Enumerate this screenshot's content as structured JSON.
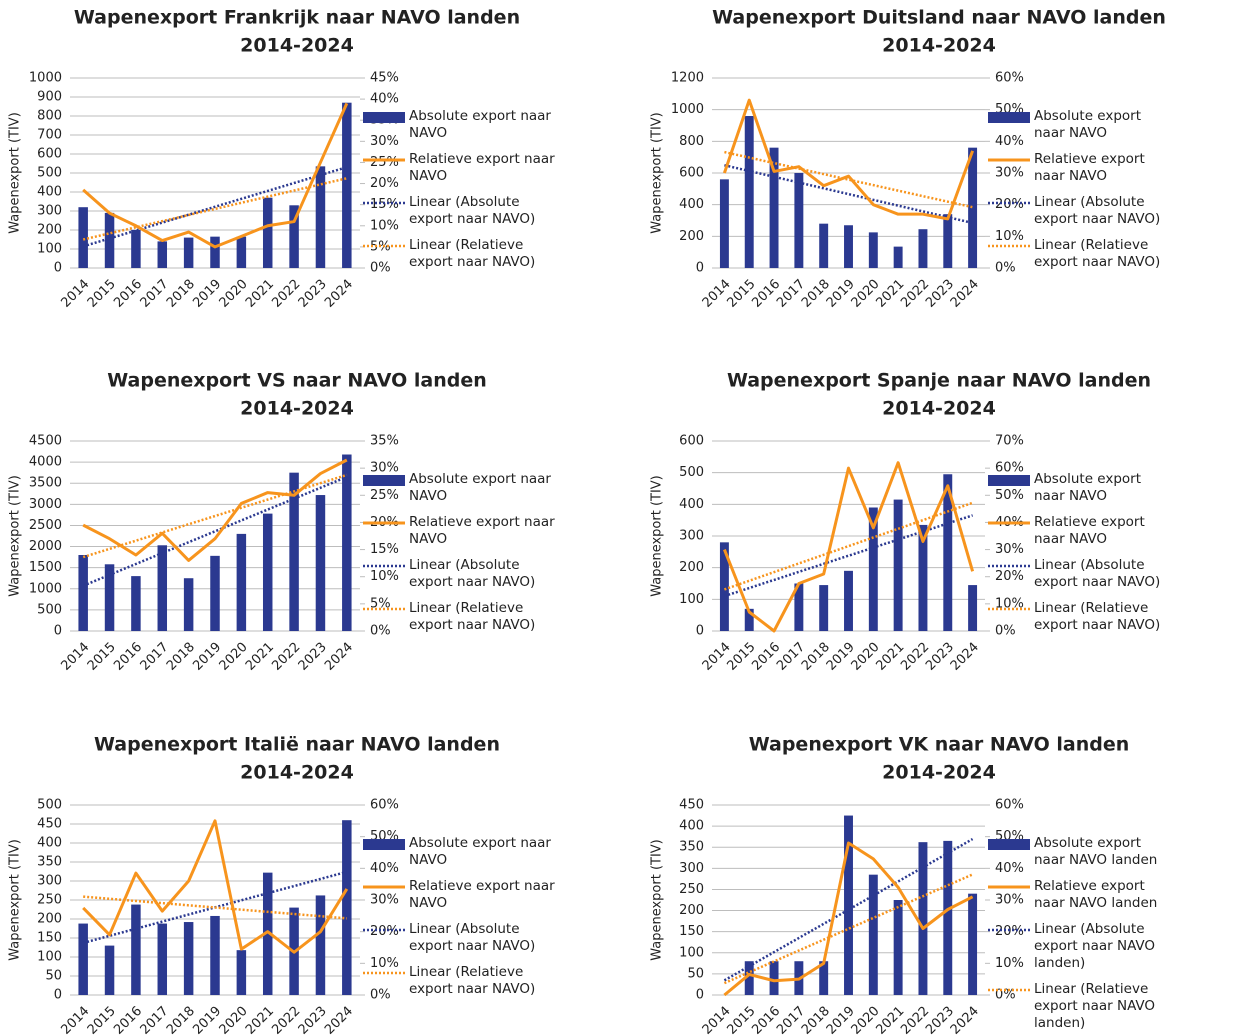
{
  "chart_data": [
    {
      "type": "bar_line",
      "title": "Wapenexport Frankrijk naar NAVO landen",
      "subtitle": "2014-2024",
      "y_label": "Wapenexport (TIV)",
      "categories": [
        "2014",
        "2015",
        "2016",
        "2017",
        "2018",
        "2019",
        "2020",
        "2021",
        "2022",
        "2023",
        "2024"
      ],
      "ylim": [
        0,
        1000
      ],
      "yticks": [
        0,
        100,
        200,
        300,
        400,
        500,
        600,
        700,
        800,
        900,
        1000
      ],
      "y2lim": [
        0,
        45
      ],
      "y2ticks": [
        {
          "value": 0,
          "label": "0%"
        },
        {
          "value": 5,
          "label": "5%"
        },
        {
          "value": 10,
          "label": "10%"
        },
        {
          "value": 15,
          "label": "15%"
        },
        {
          "value": 20,
          "label": "20%"
        },
        {
          "value": 25,
          "label": "25%"
        },
        {
          "value": 30,
          "label": "30%"
        },
        {
          "value": 35,
          "label": "35%"
        },
        {
          "value": 40,
          "label": "40%"
        },
        {
          "value": 45,
          "label": "45%"
        }
      ],
      "grid": true,
      "series": [
        {
          "name": "Absolute export naar NAVO",
          "type": "bar",
          "color": "#2b3990",
          "values": [
            320,
            290,
            200,
            140,
            160,
            165,
            165,
            370,
            330,
            535,
            870
          ],
          "trendline": {
            "name": "Linear (Absolute export naar NAVO)",
            "color": "#2b3990"
          }
        },
        {
          "name": "Relatieve export naar NAVO",
          "type": "line",
          "axis": "y2",
          "color": "#f7941d",
          "values": [
            18.5,
            13,
            10,
            6.5,
            8.5,
            5,
            7.5,
            10,
            11,
            25,
            39
          ],
          "trendline": {
            "name": "Linear (Relatieve export naar NAVO)",
            "color": "#f7941d"
          }
        }
      ]
    },
    {
      "type": "bar_line",
      "title": "Wapenexport Duitsland naar NAVO landen",
      "subtitle": "2014-2024",
      "y_label": "Wapenexport (TIV)",
      "categories": [
        "2014",
        "2015",
        "2016",
        "2017",
        "2018",
        "2019",
        "2020",
        "2021",
        "2022",
        "2023",
        "2024"
      ],
      "ylim": [
        0,
        1200
      ],
      "yticks": [
        0,
        200,
        400,
        600,
        800,
        1000,
        1200
      ],
      "y2lim": [
        0,
        60
      ],
      "y2ticks": [
        {
          "value": 0,
          "label": "0%"
        },
        {
          "value": 10,
          "label": "10%"
        },
        {
          "value": 20,
          "label": "20%"
        },
        {
          "value": 30,
          "label": "30%"
        },
        {
          "value": 40,
          "label": "40%"
        },
        {
          "value": 50,
          "label": "50%"
        },
        {
          "value": 60,
          "label": "60%"
        }
      ],
      "grid": true,
      "series": [
        {
          "name": "Absolute export naar NAVO",
          "type": "bar",
          "color": "#2b3990",
          "values": [
            560,
            960,
            760,
            600,
            280,
            270,
            225,
            135,
            245,
            340,
            760
          ],
          "trendline": {
            "name": "Linear (Absolute export naar NAVO)",
            "color": "#2b3990"
          }
        },
        {
          "name": "Relatieve export naar NAVO",
          "type": "line",
          "axis": "y2",
          "color": "#f7941d",
          "values": [
            30,
            53,
            30.5,
            32,
            26,
            29,
            20,
            17,
            17,
            15.5,
            37
          ],
          "trendline": {
            "name": "Linear (Relatieve export naar NAVO)",
            "color": "#f7941d"
          }
        }
      ]
    },
    {
      "type": "bar_line",
      "title": "Wapenexport VS naar NAVO landen",
      "subtitle": "2014-2024",
      "y_label": "Wapenexport (TIV)",
      "categories": [
        "2014",
        "2015",
        "2016",
        "2017",
        "2018",
        "2019",
        "2020",
        "2021",
        "2022",
        "2023",
        "2024"
      ],
      "ylim": [
        0,
        4500
      ],
      "yticks": [
        0,
        500,
        1000,
        1500,
        2000,
        2500,
        3000,
        3500,
        4000,
        4500
      ],
      "y2lim": [
        0,
        35
      ],
      "y2ticks": [
        {
          "value": 0,
          "label": "0%"
        },
        {
          "value": 5,
          "label": "5%"
        },
        {
          "value": 10,
          "label": "10%"
        },
        {
          "value": 15,
          "label": "15%"
        },
        {
          "value": 20,
          "label": "20%"
        },
        {
          "value": 25,
          "label": "25%"
        },
        {
          "value": 30,
          "label": "30%"
        },
        {
          "value": 35,
          "label": "35%"
        }
      ],
      "grid": true,
      "series": [
        {
          "name": "Absolute export naar NAVO",
          "type": "bar",
          "color": "#2b3990",
          "values": [
            1800,
            1580,
            1300,
            2030,
            1250,
            1780,
            2300,
            2780,
            3750,
            3220,
            4180
          ],
          "trendline": {
            "name": "Linear (Absolute export naar NAVO)",
            "color": "#2b3990"
          }
        },
        {
          "name": "Relatieve export naar NAVO",
          "type": "line",
          "axis": "y2",
          "color": "#f7941d",
          "values": [
            19.5,
            17,
            14,
            18,
            13,
            17,
            23.5,
            25.5,
            25,
            29,
            31.5
          ],
          "trendline": {
            "name": "Linear (Relatieve export naar NAVO)",
            "color": "#f7941d"
          }
        }
      ]
    },
    {
      "type": "bar_line",
      "title": "Wapenexport Spanje naar NAVO landen",
      "subtitle": "2014-2024",
      "y_label": "Wapenexport (TIV)",
      "categories": [
        "2014",
        "2015",
        "2016",
        "2017",
        "2018",
        "2019",
        "2020",
        "2021",
        "2022",
        "2023",
        "2024"
      ],
      "ylim": [
        0,
        600
      ],
      "yticks": [
        0,
        100,
        200,
        300,
        400,
        500,
        600
      ],
      "y2lim": [
        0,
        70
      ],
      "y2ticks": [
        {
          "value": 0,
          "label": "0%"
        },
        {
          "value": 10,
          "label": "10%"
        },
        {
          "value": 20,
          "label": "20%"
        },
        {
          "value": 30,
          "label": "30%"
        },
        {
          "value": 40,
          "label": "40%"
        },
        {
          "value": 50,
          "label": "50%"
        },
        {
          "value": 60,
          "label": "60%"
        },
        {
          "value": 70,
          "label": "70%"
        }
      ],
      "grid": true,
      "series": [
        {
          "name": "Absolute export naar NAVO",
          "type": "bar",
          "color": "#2b3990",
          "values": [
            280,
            70,
            0,
            150,
            145,
            190,
            390,
            415,
            335,
            495,
            145
          ],
          "trendline": {
            "name": "Linear (Absolute export naar NAVO)",
            "color": "#2b3990"
          }
        },
        {
          "name": "Relatieve export naar NAVO",
          "type": "line",
          "axis": "y2",
          "color": "#f7941d",
          "values": [
            30,
            7,
            0,
            17.5,
            21,
            60,
            38,
            62,
            33,
            53.5,
            22
          ],
          "trendline": {
            "name": "Linear (Relatieve export naar NAVO)",
            "color": "#f7941d"
          }
        }
      ]
    },
    {
      "type": "bar_line",
      "title": "Wapenexport Italië naar NAVO landen",
      "subtitle": "2014-2024",
      "y_label": "Wapenexport (TIV)",
      "categories": [
        "2014",
        "2015",
        "2016",
        "2017",
        "2018",
        "2019",
        "2020",
        "2021",
        "2022",
        "2023",
        "2024"
      ],
      "ylim": [
        0,
        500
      ],
      "yticks": [
        0,
        50,
        100,
        150,
        200,
        250,
        300,
        350,
        400,
        450,
        500
      ],
      "y2lim": [
        0,
        60
      ],
      "y2ticks": [
        {
          "value": 0,
          "label": "0%"
        },
        {
          "value": 10,
          "label": "10%"
        },
        {
          "value": 20,
          "label": "20%"
        },
        {
          "value": 30,
          "label": "30%"
        },
        {
          "value": 40,
          "label": "40%"
        },
        {
          "value": 50,
          "label": "50%"
        },
        {
          "value": 60,
          "label": "60%"
        }
      ],
      "grid": true,
      "series": [
        {
          "name": "Absolute export naar NAVO",
          "type": "bar",
          "color": "#2b3990",
          "values": [
            188,
            130,
            238,
            188,
            192,
            208,
            118,
            322,
            230,
            262,
            460
          ],
          "trendline": {
            "name": "Linear (Absolute export naar NAVO)",
            "color": "#2b3990"
          }
        },
        {
          "name": "Relatieve export naar NAVO",
          "type": "line",
          "axis": "y2",
          "color": "#f7941d",
          "values": [
            27.5,
            19,
            38.5,
            26.5,
            36,
            55,
            14.5,
            20,
            13.5,
            20,
            33.5
          ],
          "trendline": {
            "name": "Linear (Relatieve export naar NAVO)",
            "color": "#f7941d"
          }
        }
      ]
    },
    {
      "type": "bar_line",
      "title": "Wapenexport VK naar NAVO landen",
      "subtitle": "2014-2024",
      "y_label": "Wapenexport (TIV)",
      "categories": [
        "2014",
        "2015",
        "2016",
        "2017",
        "2018",
        "2019",
        "2020",
        "2021",
        "2022",
        "2023",
        "2024"
      ],
      "ylim": [
        0,
        450
      ],
      "yticks": [
        0,
        50,
        100,
        150,
        200,
        250,
        300,
        350,
        400,
        450
      ],
      "y2lim": [
        0,
        60
      ],
      "y2ticks": [
        {
          "value": 0,
          "label": "0%"
        },
        {
          "value": 10,
          "label": "10%"
        },
        {
          "value": 20,
          "label": "20%"
        },
        {
          "value": 30,
          "label": "30%"
        },
        {
          "value": 40,
          "label": "40%"
        },
        {
          "value": 50,
          "label": "50%"
        },
        {
          "value": 60,
          "label": "60%"
        }
      ],
      "grid": true,
      "series": [
        {
          "name": "Absolute export naar NAVO landen",
          "type": "bar",
          "color": "#2b3990",
          "values": [
            0,
            80,
            80,
            80,
            80,
            425,
            285,
            225,
            362,
            365,
            240
          ],
          "trendline": {
            "name": "Linear (Absolute export naar NAVO landen)",
            "color": "#2b3990"
          }
        },
        {
          "name": "Relatieve export naar NAVO landen",
          "type": "line",
          "axis": "y2",
          "color": "#f7941d",
          "values": [
            0,
            6.5,
            4.5,
            5,
            10,
            48,
            43,
            34,
            21,
            27,
            31
          ],
          "trendline": {
            "name": "Linear (Relatieve export naar NAVO landen)",
            "color": "#f7941d"
          }
        }
      ]
    }
  ]
}
